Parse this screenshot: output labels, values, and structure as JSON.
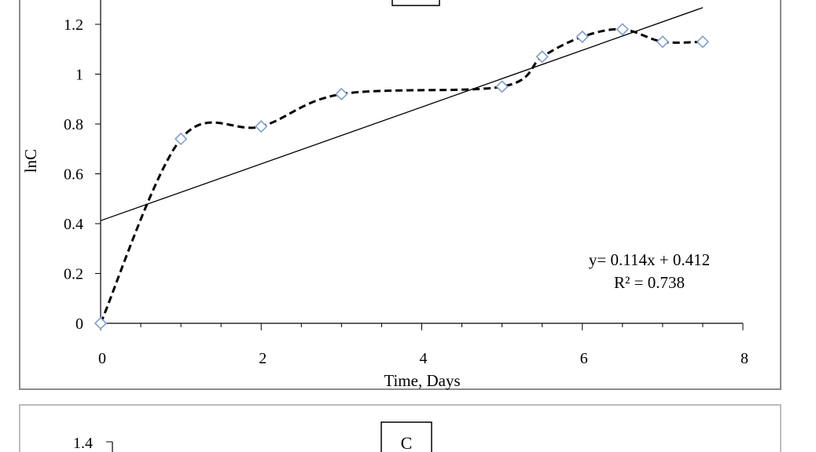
{
  "chart_data": [
    {
      "type": "scatter",
      "panel_label": "",
      "xlabel": "Time, Days",
      "ylabel": "lnC",
      "xlim": [
        0,
        8
      ],
      "ylim": [
        0,
        1.3
      ],
      "x_ticks": [
        "0",
        "2",
        "4",
        "6",
        "8"
      ],
      "y_ticks": [
        "0",
        "0.2",
        "0.4",
        "0.6",
        "0.8",
        "1",
        "1.2"
      ],
      "grid": false,
      "series": [
        {
          "marker": "diamond",
          "marker_color": "#7f9fcf",
          "line_style": "dashed-smooth",
          "points": [
            {
              "x": 0,
              "y": 0
            },
            {
              "x": 1,
              "y": 0.74
            },
            {
              "x": 2,
              "y": 0.79
            },
            {
              "x": 3,
              "y": 0.92
            },
            {
              "x": 5,
              "y": 0.95
            },
            {
              "x": 5.5,
              "y": 1.07
            },
            {
              "x": 6,
              "y": 1.15
            },
            {
              "x": 6.5,
              "y": 1.18
            },
            {
              "x": 7,
              "y": 1.13
            },
            {
              "x": 7.5,
              "y": 1.13
            }
          ]
        }
      ],
      "trendline": {
        "slope": 0.114,
        "intercept": 0.412,
        "x_range": [
          0,
          7.5
        ],
        "equation_text": "y= 0.114x + 0.412",
        "r2_text": "R² = 0.738"
      }
    },
    {
      "type": "scatter",
      "panel_label": "C",
      "y_ticks_visible": [
        "1.4"
      ]
    }
  ]
}
